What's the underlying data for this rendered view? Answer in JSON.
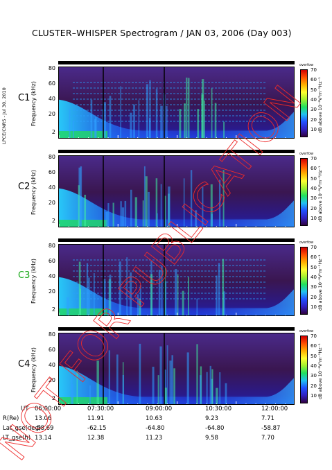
{
  "title": "CLUSTER–WHISPER Spectrogram / JAN 03, 2006 (Day 003)",
  "credit": "LPCE/CNRS - Jul 30, 2010",
  "watermark": "NOT FOR PUBLICATION",
  "colors": {
    "panel_bg": "#3a1650",
    "label_green": "#18a818"
  },
  "chart_data": {
    "type": "heatmap",
    "x_range": [
      "06:00:00",
      "12:00:00"
    ],
    "y_range_khz": [
      2,
      82
    ],
    "colorbar_range_db": [
      10,
      70
    ],
    "colorbar_ticks": [
      "70",
      "60",
      "50",
      "40",
      "30",
      "20",
      "10"
    ],
    "colorbar_top_label": "overfow",
    "colorbar_label": "dB above 10⁻⁸V²m⁻²Hz⁻¹",
    "y_label": "Frequency (kHz)",
    "y_ticks": [
      "80",
      "60",
      "40",
      "20",
      "2"
    ],
    "panels": [
      {
        "name": "C1",
        "label_color": "#000000"
      },
      {
        "name": "C2",
        "label_color": "#000000"
      },
      {
        "name": "C3",
        "label_color": "#18a818"
      },
      {
        "name": "C4",
        "label_color": "#000000"
      }
    ],
    "x_axis": {
      "ticks": [
        "06:00:00",
        "07:30:00",
        "09:00:00",
        "10:30:00",
        "12:00:00"
      ],
      "rows": [
        {
          "label": "UT",
          "values": [
            "06:00:00",
            "07:30:00",
            "09:00:00",
            "10:30:00",
            "12:00:00"
          ]
        },
        {
          "label": "R(Re)",
          "values": [
            "13.06",
            "11.91",
            "10.63",
            "9.23",
            "7.71"
          ]
        },
        {
          "label": "Lat_gse(deg)",
          "values": [
            "-58.69",
            "-62.15",
            "-64.80",
            "-64.80",
            "-58.87"
          ]
        },
        {
          "label": "LT_gse(h)",
          "values": [
            "13.14",
            "12.38",
            "11.23",
            "9.58",
            "7.70"
          ]
        }
      ]
    }
  }
}
